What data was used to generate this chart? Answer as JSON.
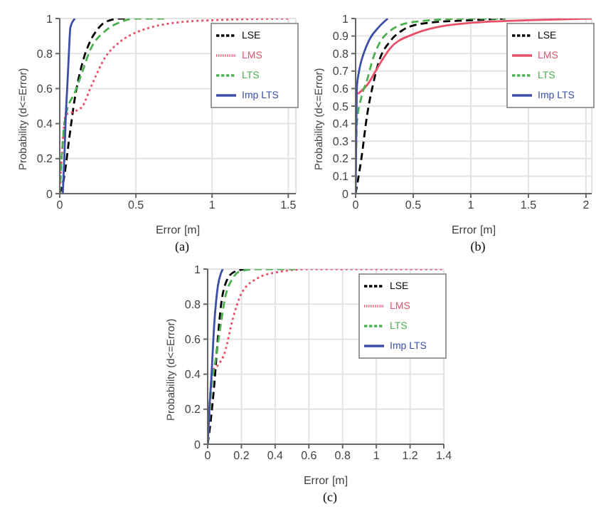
{
  "chart_data": [
    {
      "type": "line",
      "xlabel": "Error [m]",
      "ylabel": "Probability (d<=Error)",
      "xlim": [
        0,
        1.55
      ],
      "xticks": [
        0,
        0.5,
        1,
        1.5
      ],
      "ylim": [
        0,
        1
      ],
      "yticks": [
        0,
        0.2,
        0.4,
        0.6,
        0.8,
        1
      ],
      "grid": true,
      "legend": "top right",
      "annotations": [
        "(a)"
      ],
      "series": [
        {
          "name": "LSE",
          "color": "#000000",
          "line_style": "dashed",
          "x": [
            0,
            0.03,
            0.06,
            0.1,
            0.15,
            0.2,
            0.25,
            0.3,
            0.4,
            0.45
          ],
          "values": [
            0,
            0.1,
            0.3,
            0.55,
            0.75,
            0.87,
            0.94,
            0.98,
            1,
            1
          ]
        },
        {
          "name": "LMS",
          "color": "#e8506a",
          "line_style": "dotted",
          "x": [
            0,
            0.02,
            0.04,
            0.1,
            0.15,
            0.2,
            0.3,
            0.4,
            0.5,
            0.6,
            0.8,
            1,
            1.5
          ],
          "values": [
            0,
            0.3,
            0.45,
            0.47,
            0.5,
            0.6,
            0.78,
            0.87,
            0.92,
            0.95,
            0.98,
            0.99,
            1
          ]
        },
        {
          "name": "LTS",
          "color": "#4caf50",
          "line_style": "dashed",
          "x": [
            0,
            0.02,
            0.04,
            0.1,
            0.15,
            0.2,
            0.3,
            0.4,
            0.5,
            0.7
          ],
          "values": [
            0,
            0.3,
            0.45,
            0.58,
            0.7,
            0.82,
            0.93,
            0.98,
            1,
            1
          ]
        },
        {
          "name": "Imp LTS",
          "color": "#3b4fa8",
          "line_style": "solid",
          "x": [
            0.02,
            0.03,
            0.04,
            0.05,
            0.06,
            0.07,
            0.1
          ],
          "values": [
            0,
            0.2,
            0.45,
            0.62,
            0.8,
            0.95,
            1
          ]
        }
      ]
    },
    {
      "type": "line",
      "xlabel": "Error [m]",
      "ylabel": "Probability (d<=Error)",
      "xlim": [
        0,
        2.05
      ],
      "xticks": [
        0,
        0.5,
        1,
        1.5,
        2
      ],
      "ylim": [
        0,
        1
      ],
      "yticks": [
        0,
        0.1,
        0.2,
        0.3,
        0.4,
        0.5,
        0.6,
        0.7,
        0.8,
        0.9,
        1
      ],
      "grid": true,
      "legend": "top right",
      "annotations": [
        "(b)"
      ],
      "series": [
        {
          "name": "LSE",
          "color": "#000000",
          "line_style": "dashed",
          "x": [
            0,
            0.05,
            0.1,
            0.15,
            0.2,
            0.3,
            0.4,
            0.5,
            0.7,
            1,
            1.3
          ],
          "values": [
            0,
            0.2,
            0.45,
            0.62,
            0.75,
            0.87,
            0.93,
            0.96,
            0.98,
            0.99,
            1
          ]
        },
        {
          "name": "LMS",
          "color": "#e8506a",
          "line_style": "solid",
          "x": [
            0.02,
            0.1,
            0.2,
            0.3,
            0.5,
            0.7,
            1,
            1.5,
            2.05
          ],
          "values": [
            0.57,
            0.62,
            0.73,
            0.83,
            0.91,
            0.95,
            0.975,
            0.99,
            1
          ]
        },
        {
          "name": "LTS",
          "color": "#4caf50",
          "line_style": "dashed",
          "x": [
            0,
            0.01,
            0.05,
            0.1,
            0.15,
            0.2,
            0.3,
            0.5,
            1,
            1.3
          ],
          "values": [
            0,
            0.4,
            0.55,
            0.65,
            0.77,
            0.85,
            0.93,
            0.98,
            1,
            1
          ]
        },
        {
          "name": "Imp LTS",
          "color": "#3b4fa8",
          "line_style": "solid",
          "x": [
            0,
            0.005,
            0.01,
            0.03,
            0.07,
            0.12,
            0.2,
            0.28
          ],
          "values": [
            0,
            0.3,
            0.6,
            0.7,
            0.8,
            0.88,
            0.95,
            1
          ]
        }
      ]
    },
    {
      "type": "line",
      "xlabel": "Error [m]",
      "ylabel": "Probability (d<=Error)",
      "xlim": [
        0,
        1.4
      ],
      "xticks": [
        0,
        0.2,
        0.4,
        0.6,
        0.8,
        1,
        1.2,
        1.4
      ],
      "ylim": [
        0,
        1
      ],
      "yticks": [
        0,
        0.2,
        0.4,
        0.6,
        0.8,
        1
      ],
      "grid": true,
      "legend": "top right",
      "annotations": [
        "(c)"
      ],
      "series": [
        {
          "name": "LSE",
          "color": "#000000",
          "line_style": "dashed",
          "x": [
            0,
            0.02,
            0.04,
            0.06,
            0.08,
            0.1,
            0.15,
            0.22
          ],
          "values": [
            0,
            0.15,
            0.35,
            0.6,
            0.8,
            0.9,
            0.98,
            1
          ]
        },
        {
          "name": "LMS",
          "color": "#e8506a",
          "line_style": "dotted",
          "x": [
            0,
            0.03,
            0.06,
            0.1,
            0.15,
            0.2,
            0.3,
            0.4,
            0.6,
            1.4
          ],
          "values": [
            0,
            0.42,
            0.45,
            0.52,
            0.72,
            0.86,
            0.95,
            0.98,
            1,
            1
          ]
        },
        {
          "name": "LTS",
          "color": "#4caf50",
          "line_style": "dashed",
          "x": [
            0,
            0.02,
            0.05,
            0.08,
            0.1,
            0.15,
            0.2,
            0.3,
            0.55
          ],
          "values": [
            0,
            0.3,
            0.5,
            0.7,
            0.82,
            0.95,
            0.99,
            1,
            1
          ]
        },
        {
          "name": "Imp LTS",
          "color": "#3b4fa8",
          "line_style": "solid",
          "x": [
            0,
            0.01,
            0.02,
            0.04,
            0.06,
            0.08,
            0.09
          ],
          "values": [
            0,
            0.2,
            0.35,
            0.7,
            0.9,
            0.98,
            1
          ]
        }
      ]
    }
  ]
}
